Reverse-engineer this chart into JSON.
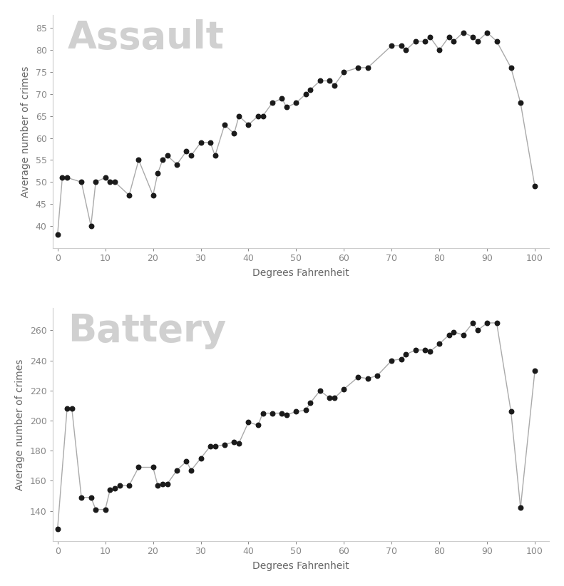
{
  "assault_x": [
    0,
    1,
    2,
    5,
    7,
    8,
    10,
    11,
    12,
    15,
    17,
    20,
    21,
    22,
    23,
    25,
    27,
    28,
    30,
    32,
    33,
    35,
    37,
    38,
    40,
    42,
    43,
    45,
    47,
    48,
    50,
    52,
    53,
    55,
    57,
    58,
    60,
    63,
    65,
    70,
    72,
    73,
    75,
    77,
    78,
    80,
    82,
    83,
    85,
    87,
    88,
    90,
    92,
    95,
    97,
    100
  ],
  "assault_y": [
    38,
    51,
    51,
    50,
    40,
    50,
    51,
    50,
    50,
    47,
    55,
    47,
    52,
    55,
    56,
    54,
    57,
    56,
    59,
    59,
    56,
    63,
    61,
    65,
    63,
    65,
    65,
    68,
    69,
    67,
    68,
    70,
    71,
    73,
    73,
    72,
    75,
    76,
    76,
    81,
    81,
    80,
    82,
    82,
    83,
    80,
    83,
    82,
    84,
    83,
    82,
    84,
    82,
    76,
    68,
    49
  ],
  "battery_x": [
    0,
    2,
    3,
    5,
    7,
    8,
    10,
    11,
    12,
    13,
    15,
    17,
    20,
    21,
    22,
    23,
    25,
    27,
    28,
    30,
    32,
    33,
    35,
    37,
    38,
    40,
    42,
    43,
    45,
    47,
    48,
    50,
    52,
    53,
    55,
    57,
    58,
    60,
    63,
    65,
    67,
    70,
    72,
    73,
    75,
    77,
    78,
    80,
    82,
    83,
    85,
    87,
    88,
    90,
    92,
    95,
    97,
    100
  ],
  "battery_y": [
    128,
    208,
    208,
    149,
    149,
    141,
    141,
    154,
    155,
    157,
    157,
    169,
    169,
    157,
    158,
    158,
    167,
    173,
    167,
    175,
    183,
    183,
    184,
    186,
    185,
    199,
    197,
    205,
    205,
    205,
    204,
    206,
    207,
    212,
    220,
    215,
    215,
    221,
    229,
    228,
    230,
    240,
    241,
    244,
    247,
    247,
    246,
    251,
    257,
    259,
    257,
    265,
    260,
    265,
    265,
    206,
    142,
    233
  ],
  "title_assault": "Assault",
  "title_battery": "Battery",
  "xlabel": "Degrees Fahrenheit",
  "ylabel": "Average number of crimes",
  "title_color": "#d0d0d0",
  "line_color": "#aaaaaa",
  "dot_color": "#1a1a1a",
  "bg_color": "#ffffff",
  "assault_ylim": [
    35,
    88
  ],
  "battery_ylim": [
    120,
    275
  ],
  "assault_yticks": [
    40,
    45,
    50,
    55,
    60,
    65,
    70,
    75,
    80,
    85
  ],
  "battery_yticks": [
    140,
    160,
    180,
    200,
    220,
    240,
    260
  ],
  "xticks": [
    0,
    10,
    20,
    30,
    40,
    50,
    60,
    70,
    80,
    90,
    100
  ],
  "title_fontsize": 38,
  "label_fontsize": 10,
  "tick_fontsize": 9,
  "spine_color": "#cccccc",
  "tick_color": "#888888",
  "label_color": "#666666"
}
